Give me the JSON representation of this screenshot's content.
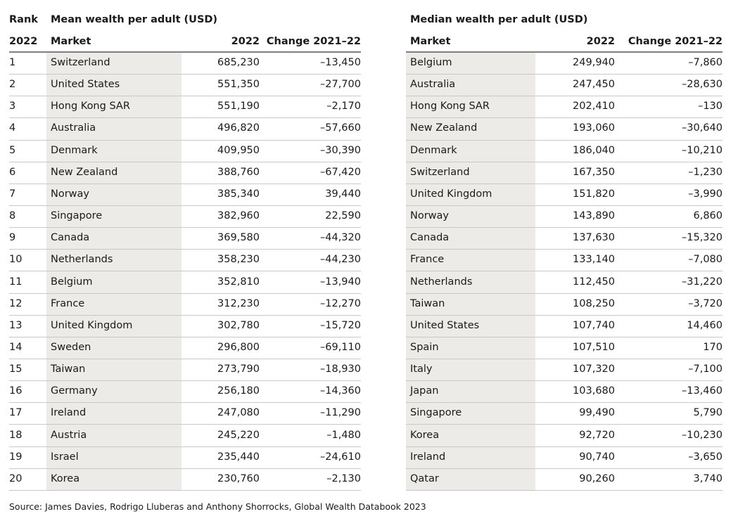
{
  "mean": {
    "rank_header": "Rank",
    "rank_year": "2022",
    "title": "Mean wealth per adult (USD)",
    "col_market": "Market",
    "col_2022": "2022",
    "col_change": "Change 2021–22",
    "rows": [
      [
        "1",
        "Switzerland",
        "685,230",
        "–13,450"
      ],
      [
        "2",
        "United States",
        "551,350",
        "–27,700"
      ],
      [
        "3",
        "Hong Kong SAR",
        "551,190",
        "–2,170"
      ],
      [
        "4",
        "Australia",
        "496,820",
        "–57,660"
      ],
      [
        "5",
        "Denmark",
        "409,950",
        "–30,390"
      ],
      [
        "6",
        "New Zealand",
        "388,760",
        "–67,420"
      ],
      [
        "7",
        "Norway",
        "385,340",
        "39,440"
      ],
      [
        "8",
        "Singapore",
        "382,960",
        "22,590"
      ],
      [
        "9",
        "Canada",
        "369,580",
        "–44,320"
      ],
      [
        "10",
        "Netherlands",
        "358,230",
        "–44,230"
      ],
      [
        "11",
        "Belgium",
        "352,810",
        "–13,940"
      ],
      [
        "12",
        "France",
        "312,230",
        "–12,270"
      ],
      [
        "13",
        "United Kingdom",
        "302,780",
        "–15,720"
      ],
      [
        "14",
        "Sweden",
        "296,800",
        "–69,110"
      ],
      [
        "15",
        "Taiwan",
        "273,790",
        "–18,930"
      ],
      [
        "16",
        "Germany",
        "256,180",
        "–14,360"
      ],
      [
        "17",
        "Ireland",
        "247,080",
        "–11,290"
      ],
      [
        "18",
        "Austria",
        "245,220",
        "–1,480"
      ],
      [
        "19",
        "Israel",
        "235,440",
        "–24,610"
      ],
      [
        "20",
        "Korea",
        "230,760",
        "–2,130"
      ]
    ]
  },
  "median": {
    "title": "Median wealth per adult (USD)",
    "col_market": "Market",
    "col_2022": "2022",
    "col_change": "Change 2021–22",
    "rows": [
      [
        "Belgium",
        "249,940",
        "–7,860"
      ],
      [
        "Australia",
        "247,450",
        "–28,630"
      ],
      [
        "Hong Kong SAR",
        "202,410",
        "–130"
      ],
      [
        "New Zealand",
        "193,060",
        "–30,640"
      ],
      [
        "Denmark",
        "186,040",
        "–10,210"
      ],
      [
        "Switzerland",
        "167,350",
        "–1,230"
      ],
      [
        "United Kingdom",
        "151,820",
        "–3,990"
      ],
      [
        "Norway",
        "143,890",
        "6,860"
      ],
      [
        "Canada",
        "137,630",
        "–15,320"
      ],
      [
        "France",
        "133,140",
        "–7,080"
      ],
      [
        "Netherlands",
        "112,450",
        "–31,220"
      ],
      [
        "Taiwan",
        "108,250",
        "–3,720"
      ],
      [
        "United States",
        "107,740",
        "14,460"
      ],
      [
        "Spain",
        "107,510",
        "170"
      ],
      [
        "Italy",
        "107,320",
        "–7,100"
      ],
      [
        "Japan",
        "103,680",
        "–13,460"
      ],
      [
        "Singapore",
        "99,490",
        "5,790"
      ],
      [
        "Korea",
        "92,720",
        "–10,230"
      ],
      [
        "Ireland",
        "90,740",
        "–3,650"
      ],
      [
        "Qatar",
        "90,260",
        "3,740"
      ]
    ]
  },
  "source": "Source: James Davies, Rodrigo Lluberas and Anthony Shorrocks, Global Wealth Databook 2023",
  "colors": {
    "shade": "#ecebe7",
    "rule": "#7f7f7f",
    "divider": "#c8c8c8"
  }
}
